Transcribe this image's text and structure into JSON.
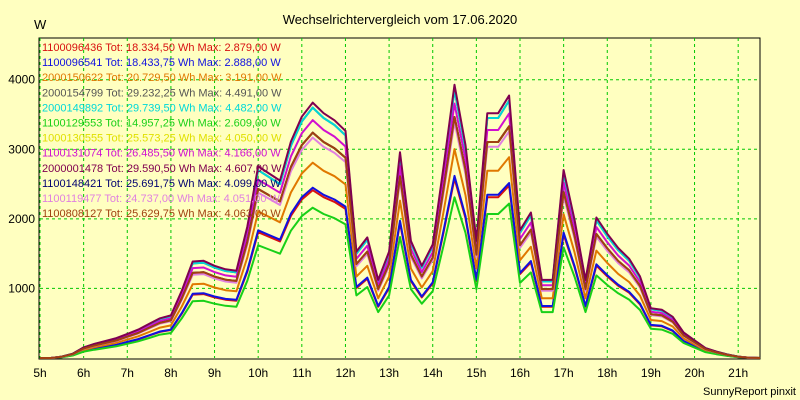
{
  "chart_data": {
    "type": "line",
    "title": "Wechselrichtervergleich vom 17.06.2020",
    "ylabel": "W",
    "footer": "SunnyReport pinxit",
    "ylim": [
      0,
      4600
    ],
    "xlim": [
      5,
      21.5
    ],
    "yticks": [
      1000,
      2000,
      3000,
      4000
    ],
    "xticks": [
      "5h",
      "6h",
      "7h",
      "8h",
      "9h",
      "10h",
      "11h",
      "12h",
      "13h",
      "14h",
      "15h",
      "16h",
      "17h",
      "18h",
      "19h",
      "20h",
      "21h"
    ],
    "grid": true,
    "legend_position": "top-left",
    "x": [
      5.0,
      5.25,
      5.5,
      5.75,
      6.0,
      6.25,
      6.5,
      6.75,
      7.0,
      7.25,
      7.5,
      7.75,
      8.0,
      8.25,
      8.5,
      8.75,
      9.0,
      9.25,
      9.5,
      9.75,
      10.0,
      10.25,
      10.5,
      10.75,
      11.0,
      11.25,
      11.5,
      11.75,
      12.0,
      12.25,
      12.5,
      12.75,
      13.0,
      13.25,
      13.5,
      13.75,
      14.0,
      14.25,
      14.5,
      14.75,
      15.0,
      15.25,
      15.5,
      15.75,
      16.0,
      16.25,
      16.5,
      16.75,
      17.0,
      17.25,
      17.5,
      17.75,
      18.0,
      18.25,
      18.5,
      18.75,
      19.0,
      19.25,
      19.5,
      19.75,
      20.0,
      20.25,
      20.5,
      20.75,
      21.0,
      21.25,
      21.5
    ],
    "base": [
      0,
      0,
      20,
      60,
      150,
      200,
      240,
      280,
      340,
      400,
      480,
      560,
      600,
      950,
      1360,
      1370,
      1300,
      1250,
      1230,
      1850,
      2700,
      2600,
      2500,
      3050,
      3400,
      3600,
      3450,
      3350,
      3200,
      1500,
      1700,
      1100,
      1500,
      2900,
      1650,
      1300,
      1600,
      2700,
      3850,
      3000,
      1650,
      3450,
      3450,
      3700,
      1800,
      2050,
      1100,
      1100,
      2650,
      1950,
      1100,
      1980,
      1750,
      1550,
      1400,
      1150,
      700,
      680,
      580,
      360,
      250,
      140,
      90,
      50,
      20,
      5,
      0
    ],
    "series": [
      {
        "name": "1100096436",
        "label": "1100096436 Tot: 18.334,50 Wh Max: 2.879,00 W",
        "color": "#d81010",
        "scale": 0.67
      },
      {
        "name": "1100096541",
        "label": "1100096541 Tot: 18.433,75 Wh Max: 2.888,00 W",
        "color": "#1010e0",
        "scale": 0.68
      },
      {
        "name": "2000150622",
        "label": "2000150622 Tot: 20.729,50 Wh Max: 3.191,00 W",
        "color": "#e07800",
        "scale": 0.78
      },
      {
        "name": "2000154799",
        "label": "2000154799 Tot: 29.232,25 Wh Max: 4.491,00 W",
        "color": "#555555",
        "scale": 1.0
      },
      {
        "name": "2000149892",
        "label": "2000149892 Tot: 29.739,50 Wh Max: 4.482,00 W",
        "color": "#00d8d8",
        "scale": 1.0
      },
      {
        "name": "1100129553",
        "label": "1100129553 Tot: 14.957,25 Wh Max: 2.609,00 W",
        "color": "#18d018",
        "scale": 0.6
      },
      {
        "name": "1000130555",
        "label": "1000130555 Tot: 25.573,25 Wh Max: 4.050,00 W",
        "color": "#e0e000",
        "scale": 0.9
      },
      {
        "name": "1100131074",
        "label": "1100131074 Tot: 26.485,50 Wh Max: 4.166,00 W",
        "color": "#d010d0",
        "scale": 0.95
      },
      {
        "name": "2000001478",
        "label": "2000001478 Tot: 29.590,50 Wh Max: 4.607,00 W",
        "color": "#800050",
        "scale": 1.02
      },
      {
        "name": "1100148421",
        "label": "1100148421 Tot: 25.691,75 Wh Max: 4.099,00 W",
        "color": "#000070",
        "scale": 0.9
      },
      {
        "name": "1100119477",
        "label": "1100119477 Tot: 24.737,00 Wh Max: 4.051,00 W",
        "color": "#e080e0",
        "scale": 0.88
      },
      {
        "name": "1100808127",
        "label": "1100808127 Tot: 25.629,75 Wh Max: 4.063,00 W",
        "color": "#a04010",
        "scale": 0.9
      }
    ]
  }
}
